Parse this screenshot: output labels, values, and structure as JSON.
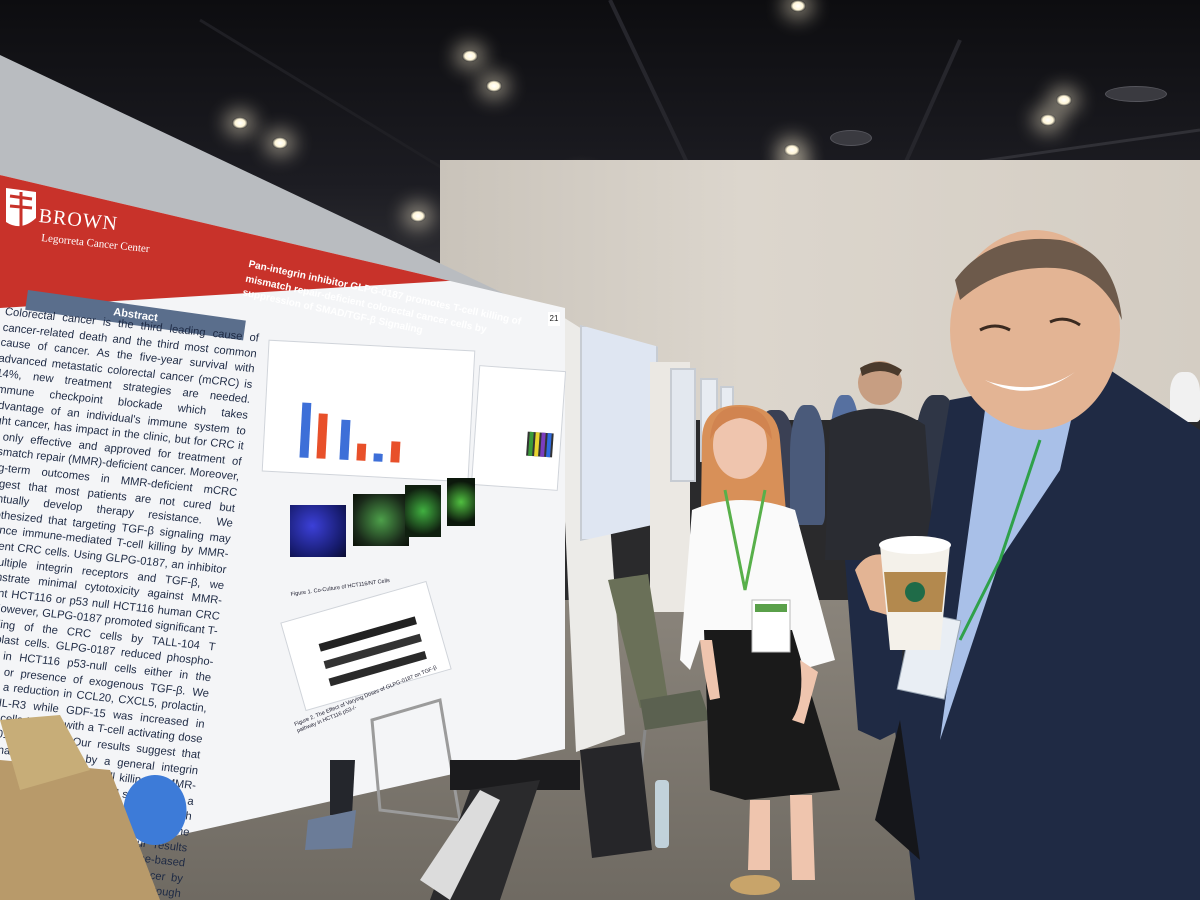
{
  "poster": {
    "brand": "BROWN",
    "brand_sub": "Legorreta Cancer Center",
    "title": "Pan-integrin inhibitor GLPG-0187 promotes T-cell killing of mismatch repair-deficient colorectal cancer cells by suppression of SMAD/TGF-β Signaling",
    "abstract_heading": "Abstract",
    "abstract_text": "Colorectal cancer is the third leading cause of cancer-related death and the third most common cause of cancer. As the five-year survival with advanced metastatic colorectal cancer (mCRC) is 14%, new treatment strategies are needed. Immune checkpoint blockade which takes advantage of an individual's immune system to fight cancer, has impact in the clinic, but for CRC it is only effective and approved for treatment of mismatch repair (MMR)-deficient cancer. Moreover, long-term outcomes in MMR-deficient mCRC suggest that most patients are not cured but eventually develop therapy resistance. We hypothesized that targeting TGF-β signaling may enhance immune-mediated T-cell killing by MMR-deficient CRC cells. Using GLPG-0187, an inhibitor of multiple integrin receptors and TGF-β, we demonstrate minimal cytotoxicity against MMR-deficient HCT116 or p53 null HCT116 human CRC cells. However, GLPG-0187 promoted significant T-cell killing of the CRC cells by TALL-104 T lymphoblast cells. GLPG-0187 reduced phospho-SMAD2 in HCT116 p53-null cells either in the absence or presence of exogenous TGF-β. We observed a reduction in CCL20, CXCL5, prolactin, and TRAIL-R3 while GDF-15 was increased in TALL-104 cells treated with a T-cell activating dose of GLPG-0187 (4 μM). Our results suggest that TGF-β signaling inhibition by a general integrin receptor inhibitor may boost T-cell killing of MMR-deficient colorectal cancer cells and suggest that a combination of anti-GDF-15 in combination with TGF-β blockade could be further investigated in the treatment of MMR-deficient mCRC. Our results support the development of a novel immune-based therapeutic strategy to treat colorectal cancer by targeting the TGF-β signaling pathway through integrin receptor blockade",
    "board_number": "21",
    "fig1_caption": "Figure 1. Co-Culture of HCT116/NT Cells",
    "fig2_caption": "Figure 2. The Effect of Varying Doses of GLPG-0187 on TGF-β pathway in HCT116 p53-/-",
    "bar_values": [
      0.82,
      0.68,
      0.6,
      0.25,
      0.12,
      0.32
    ],
    "bar_colors": [
      "#3d6fd8",
      "#e8502a",
      "#3d6fd8",
      "#e8502a",
      "#3d6fd8",
      "#e8502a"
    ]
  },
  "colors": {
    "poster_red": "#c8322a",
    "abstract_blue": "#5a6e8c",
    "suit_navy": "#1f2a44"
  }
}
